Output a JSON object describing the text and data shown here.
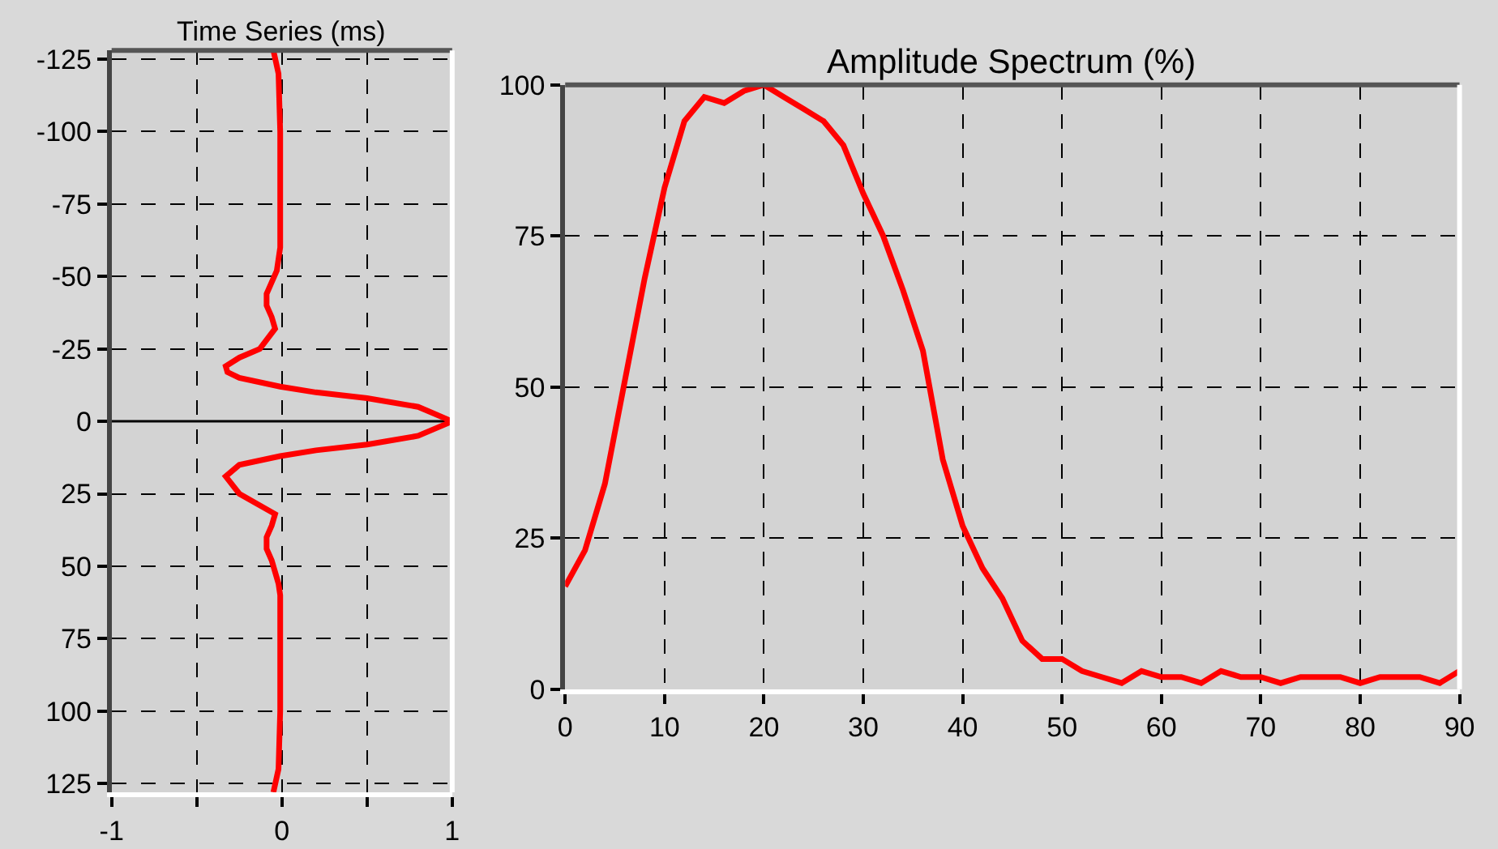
{
  "chart_data": [
    {
      "type": "line",
      "title": "Time Series (ms)",
      "grid": true,
      "x": [
        -0.05,
        -0.02,
        -0.01,
        -0.01,
        -0.01,
        -0.03,
        -0.06,
        -0.09,
        -0.09,
        -0.06,
        -0.04,
        -0.13,
        -0.25,
        -0.33,
        -0.32,
        -0.25,
        -0.01,
        0.2,
        0.5,
        0.8,
        1.0,
        0.8,
        0.5,
        0.2,
        -0.01,
        -0.25,
        -0.33,
        -0.25,
        -0.04,
        -0.06,
        -0.09,
        -0.09,
        -0.06,
        -0.02,
        -0.01,
        -0.01,
        -0.01,
        -0.02,
        -0.05
      ],
      "values": [
        -128,
        -120,
        -100,
        -75,
        -60,
        -52,
        -48,
        -44,
        -40,
        -36,
        -32,
        -25,
        -22,
        -19,
        -17,
        -15,
        -12,
        -10,
        -8,
        -5,
        0,
        5,
        8,
        10,
        12,
        15,
        19,
        25,
        32,
        36,
        40,
        44,
        48,
        56,
        60,
        75,
        100,
        120,
        128
      ],
      "color": "#ff0000",
      "xlim": [
        -1,
        1
      ],
      "xticks": [
        -1,
        {
          "value": -0.5,
          "label": null
        },
        0,
        {
          "value": 0.5,
          "label": null
        },
        1
      ],
      "ylim": [
        128,
        -128
      ],
      "yticks": [
        -125,
        -100,
        -75,
        -50,
        -25,
        0,
        25,
        50,
        75,
        100,
        125
      ],
      "ref_lines": [
        {
          "axis": "y",
          "value": 0,
          "label": null,
          "color": "#000000"
        }
      ]
    },
    {
      "type": "line",
      "title": "Amplitude Spectrum (%)",
      "grid": true,
      "x": [
        0,
        2,
        4,
        6,
        8,
        10,
        12,
        14,
        16,
        18,
        20,
        22,
        24,
        26,
        28,
        30,
        32,
        34,
        36,
        38,
        40,
        42,
        44,
        46,
        48,
        50,
        52,
        54,
        56,
        58,
        60,
        62,
        64,
        66,
        68,
        70,
        72,
        74,
        76,
        78,
        80,
        82,
        84,
        86,
        88,
        90
      ],
      "values": [
        17,
        23,
        34,
        51,
        68,
        83,
        94,
        98,
        97,
        99,
        100,
        98,
        96,
        94,
        90,
        82,
        75,
        66,
        56,
        38,
        27,
        20,
        15,
        8,
        5,
        5,
        3,
        2,
        1,
        3,
        2,
        2,
        1,
        3,
        2,
        2,
        1,
        2,
        2,
        2,
        1,
        2,
        2,
        2,
        1,
        3
      ],
      "color": "#ff0000",
      "xlim": [
        0,
        90
      ],
      "xticks": [
        0,
        10,
        20,
        30,
        40,
        50,
        60,
        70,
        80,
        90
      ],
      "ylim": [
        0,
        100
      ],
      "yticks": [
        0,
        25,
        50,
        75,
        100
      ]
    }
  ]
}
